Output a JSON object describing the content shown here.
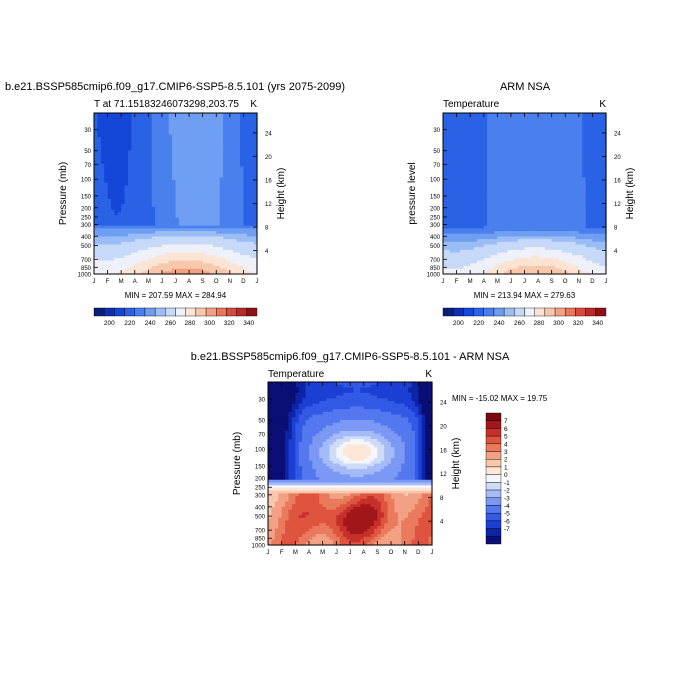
{
  "colors": {
    "abs_levels": [
      "#0a1f7a",
      "#0d2fb0",
      "#1446d8",
      "#2a62e6",
      "#4a80ee",
      "#6f9ef2",
      "#9bbdf5",
      "#c6d9f8",
      "#eef1fa",
      "#fbe4d3",
      "#f8c8ac",
      "#f2a182",
      "#e9765b",
      "#d64b3b",
      "#b82a26",
      "#8e1113"
    ],
    "diff_levels": [
      "#0a0f75",
      "#0d24a8",
      "#1c3fd4",
      "#3359e6",
      "#5378ef",
      "#7b99f4",
      "#a5bbf7",
      "#cedcfa",
      "#f4f6fc",
      "#fde6d6",
      "#f9c7ad",
      "#f3a184",
      "#ea7a5d",
      "#de543e",
      "#c7302a",
      "#a2171a",
      "#7a0a10"
    ]
  },
  "chart_data": [
    {
      "type": "heatmap",
      "title": "b.e21.BSSP585cmip6.f09_g17.CMIP6-SSP5-8.5.101 (yrs 2075-2099)",
      "subtitle_left": "T at 71.15183246073298,203.75",
      "subtitle_right": "K",
      "ylabel": "Pressure (mb)",
      "ylabel_right": "Height (km)",
      "x_ticks": [
        "J",
        "F",
        "M",
        "A",
        "M",
        "J",
        "J",
        "A",
        "S",
        "O",
        "N",
        "D",
        "J"
      ],
      "y_ticks": [
        "30",
        "50",
        "70",
        "100",
        "150",
        "200",
        "250",
        "300",
        "400",
        "500",
        "700",
        "850",
        "1000"
      ],
      "y_right_ticks": [
        "24",
        "20",
        "16",
        "12",
        "8",
        "4"
      ],
      "stats": "MIN = 207.59 MAX = 284.94",
      "colorbar_labels": [
        "200",
        "220",
        "240",
        "260",
        "280",
        "300",
        "320",
        "340"
      ],
      "colorbar_levels": [
        195,
        200,
        205,
        210,
        215,
        220,
        225,
        230,
        240,
        250,
        260,
        270,
        280,
        290,
        300,
        320,
        345
      ],
      "model": "sim"
    },
    {
      "type": "heatmap",
      "title": "ARM NSA",
      "subtitle_left": "Temperature",
      "subtitle_right": "K",
      "ylabel": "pressure level",
      "ylabel_right": "Height (km)",
      "x_ticks": [
        "J",
        "F",
        "M",
        "A",
        "M",
        "J",
        "J",
        "A",
        "S",
        "O",
        "N",
        "D",
        "J"
      ],
      "y_ticks": [
        "30",
        "50",
        "70",
        "100",
        "150",
        "200",
        "250",
        "300",
        "400",
        "500",
        "700",
        "850",
        "1000"
      ],
      "y_right_ticks": [
        "24",
        "20",
        "16",
        "12",
        "8",
        "4"
      ],
      "stats": "MIN = 213.94 MAX = 279.63",
      "colorbar_labels": [
        "200",
        "220",
        "240",
        "260",
        "280",
        "300",
        "320",
        "340"
      ],
      "colorbar_levels": [
        195,
        200,
        205,
        210,
        215,
        220,
        225,
        230,
        240,
        250,
        260,
        270,
        280,
        290,
        300,
        320,
        345
      ],
      "model": "obs"
    },
    {
      "type": "heatmap",
      "title": "b.e21.BSSP585cmip6.f09_g17.CMIP6-SSP5-8.5.101 - ARM NSA",
      "subtitle_left": "Temperature",
      "subtitle_right": "K",
      "ylabel": "Pressure (mb)",
      "ylabel_right": "Height (km)",
      "x_ticks": [
        "J",
        "F",
        "M",
        "A",
        "M",
        "J",
        "J",
        "A",
        "S",
        "O",
        "N",
        "D",
        "J"
      ],
      "y_ticks": [
        "30",
        "50",
        "70",
        "100",
        "150",
        "200",
        "250",
        "300",
        "400",
        "500",
        "700",
        "850",
        "1000"
      ],
      "y_right_ticks": [
        "24",
        "20",
        "16",
        "12",
        "8",
        "4"
      ],
      "stats": "MIN = -15.02 MAX =  19.75",
      "colorbar_labels": [
        "7",
        "6",
        "5",
        "4",
        "3",
        "2",
        "1",
        "0",
        "-1",
        "-2",
        "-3",
        "-4",
        "-5",
        "-6",
        "-7"
      ],
      "colorbar_levels": [
        -8,
        -7,
        -6,
        -5,
        -4,
        -3,
        -2,
        -1,
        0,
        1,
        2,
        3,
        4,
        5,
        6,
        7,
        8
      ],
      "model": "diff"
    }
  ]
}
